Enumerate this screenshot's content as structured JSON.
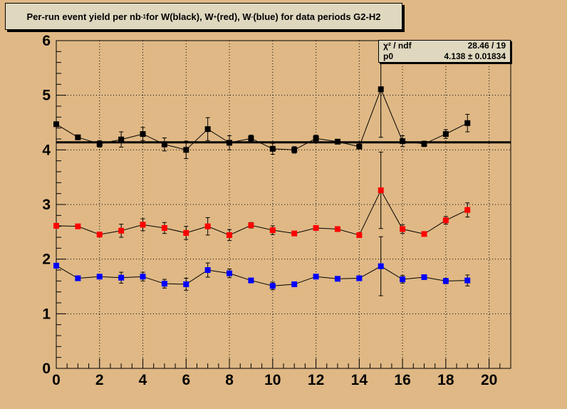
{
  "chart_data": {
    "type": "scatter",
    "title_parts": [
      "Per-run event yield per nb",
      "-1",
      " for W(black), W",
      "+",
      "(red), W",
      "-",
      "(blue) for data periods G2-H2"
    ],
    "xlim": [
      0,
      21
    ],
    "ylim": [
      0,
      6
    ],
    "x_ticks": [
      0,
      2,
      4,
      6,
      8,
      10,
      12,
      14,
      16,
      18,
      20
    ],
    "y_ticks": [
      0,
      1,
      2,
      3,
      4,
      5,
      6
    ],
    "grid": true,
    "fit": {
      "chi2_label": "χ² / ndf",
      "chi2_value": "28.46 / 19",
      "p0_label": "p0",
      "p0_value": "4.138 ± 0.01834",
      "p0": 4.138
    },
    "series": [
      {
        "color": "#000000",
        "x": [
          0,
          1,
          2,
          3,
          4,
          5,
          6,
          7,
          8,
          9,
          10,
          11,
          12,
          13,
          14,
          15,
          16,
          17,
          18,
          19
        ],
        "y": [
          4.47,
          4.23,
          4.11,
          4.19,
          4.29,
          4.1,
          4.0,
          4.38,
          4.13,
          4.21,
          4.02,
          4.0,
          4.21,
          4.15,
          4.06,
          5.11,
          4.16,
          4.11,
          4.29,
          4.49
        ],
        "err": [
          0.03,
          0.04,
          0.06,
          0.14,
          0.12,
          0.12,
          0.16,
          0.21,
          0.13,
          0.06,
          0.1,
          0.06,
          0.06,
          0.03,
          0.03,
          0.88,
          0.1,
          0.05,
          0.08,
          0.16
        ]
      },
      {
        "color": "#ff0000",
        "x": [
          0,
          1,
          2,
          3,
          4,
          5,
          6,
          7,
          8,
          9,
          10,
          11,
          12,
          13,
          14,
          15,
          16,
          17,
          18,
          19
        ],
        "y": [
          2.61,
          2.6,
          2.45,
          2.52,
          2.63,
          2.57,
          2.48,
          2.6,
          2.44,
          2.62,
          2.53,
          2.47,
          2.57,
          2.55,
          2.44,
          3.26,
          2.55,
          2.46,
          2.71,
          2.9
        ],
        "err": [
          0.02,
          0.04,
          0.04,
          0.12,
          0.11,
          0.1,
          0.12,
          0.16,
          0.1,
          0.05,
          0.08,
          0.04,
          0.04,
          0.03,
          0.03,
          0.7,
          0.08,
          0.04,
          0.07,
          0.13
        ]
      },
      {
        "color": "#0000ff",
        "x": [
          0,
          1,
          2,
          3,
          4,
          5,
          6,
          7,
          8,
          9,
          10,
          11,
          12,
          13,
          14,
          15,
          16,
          17,
          18,
          19
        ],
        "y": [
          1.88,
          1.65,
          1.68,
          1.66,
          1.68,
          1.55,
          1.54,
          1.8,
          1.74,
          1.61,
          1.51,
          1.54,
          1.68,
          1.64,
          1.65,
          1.87,
          1.63,
          1.67,
          1.6,
          1.61
        ],
        "err": [
          0.02,
          0.03,
          0.04,
          0.1,
          0.08,
          0.08,
          0.11,
          0.13,
          0.08,
          0.04,
          0.07,
          0.03,
          0.03,
          0.02,
          0.02,
          0.54,
          0.07,
          0.03,
          0.05,
          0.1
        ]
      }
    ]
  }
}
